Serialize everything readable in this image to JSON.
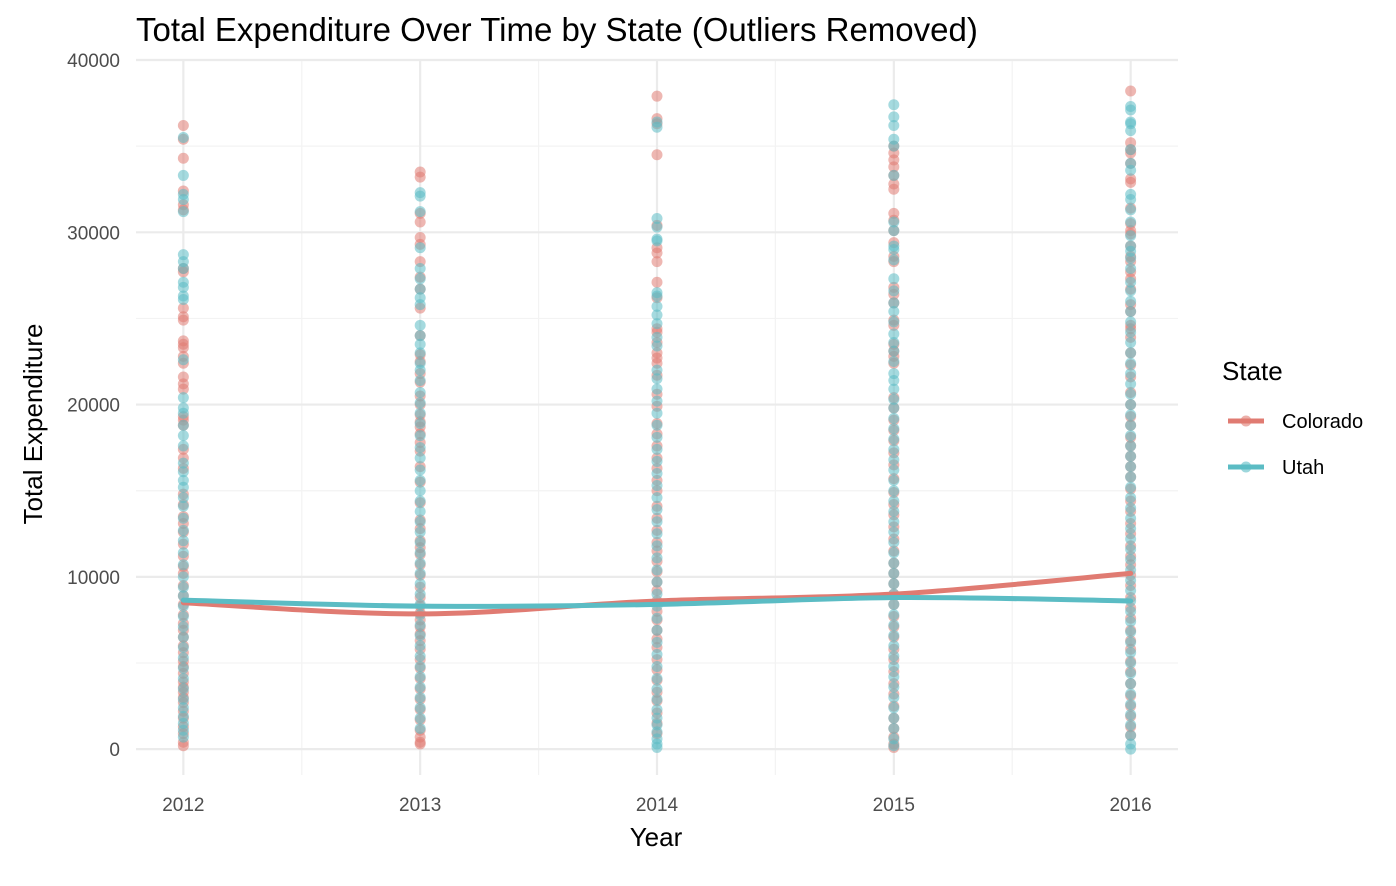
{
  "chart_data": {
    "type": "scatter",
    "title": "Total Expenditure Over Time by State (Outliers Removed)",
    "xlabel": "Year",
    "ylabel": "Total Expenditure",
    "x_ticks": [
      "2012",
      "2013",
      "2014",
      "2015",
      "2016"
    ],
    "y_ticks": [
      "0",
      "10000",
      "20000",
      "30000",
      "40000"
    ],
    "xlim": [
      2011.8,
      2016.2
    ],
    "ylim": [
      -1500,
      40000
    ],
    "legend": {
      "title": "State",
      "position": "right"
    },
    "series": [
      {
        "name": "Colorado",
        "color": "#e07b72",
        "points": [
          {
            "x": 2012,
            "y": [
              36200,
              35400,
              34300,
              32400,
              31600,
              31300,
              27900,
              27700,
              25600,
              25100,
              24900,
              23700,
              23500,
              23300,
              22800,
              22400,
              21600,
              21200,
              20900,
              19300,
              19100,
              18800,
              17400,
              16900,
              16300,
              14800,
              14200,
              13500,
              13100,
              12600,
              11900,
              11200,
              10600,
              10200,
              9500,
              8900,
              8400,
              7800,
              7300,
              6900,
              6500,
              6000,
              5600,
              5100,
              4800,
              4400,
              3900,
              3600,
              3300,
              3000,
              2700,
              2200,
              1800,
              1300,
              900,
              400,
              200
            ]
          },
          {
            "x": 2013,
            "y": [
              33500,
              33200,
              31100,
              30600,
              29700,
              29300,
              28300,
              27400,
              26700,
              25600,
              24000,
              22900,
              22500,
              21800,
              21300,
              20500,
              20000,
              19400,
              19000,
              18700,
              18300,
              17800,
              17300,
              16400,
              15500,
              14300,
              13300,
              12800,
              12100,
              11700,
              11300,
              10700,
              10100,
              9400,
              8800,
              8300,
              7900,
              7500,
              7100,
              6700,
              6300,
              5800,
              5200,
              4700,
              4100,
              3500,
              2900,
              2300,
              1700,
              1100,
              700,
              400,
              300
            ]
          },
          {
            "x": 2014,
            "y": [
              37900,
              36600,
              36300,
              34500,
              30400,
              29100,
              28800,
              28300,
              27100,
              26200,
              24400,
              24200,
              23600,
              23000,
              22700,
              22400,
              21700,
              20600,
              19900,
              18900,
              18300,
              17600,
              16900,
              16300,
              15600,
              15000,
              14100,
              13400,
              12700,
              12000,
              11500,
              10900,
              10300,
              9700,
              9200,
              8600,
              8000,
              7500,
              6900,
              6400,
              5900,
              5200,
              4600,
              4000,
              3300,
              2800,
              2100,
              1500,
              900
            ]
          },
          {
            "x": 2015,
            "y": [
              35000,
              34600,
              34200,
              33800,
              33300,
              32800,
              32500,
              31100,
              30700,
              30100,
              29400,
              28600,
              28300,
              26800,
              26400,
              25900,
              24900,
              24600,
              23500,
              23100,
              22800,
              22400,
              20400,
              19800,
              19100,
              18500,
              17900,
              17200,
              16500,
              15700,
              14900,
              14200,
              13600,
              12900,
              12200,
              11500,
              10800,
              10200,
              9600,
              9000,
              8400,
              7700,
              7100,
              6500,
              5800,
              5200,
              4500,
              3800,
              3200,
              2500,
              1800,
              1200,
              700,
              300,
              100
            ]
          },
          {
            "x": 2016,
            "y": [
              38200,
              35200,
              34800,
              34600,
              34000,
              33100,
              32900,
              31400,
              30500,
              30100,
              29900,
              29200,
              28600,
              28300,
              27700,
              27300,
              26700,
              25800,
              25400,
              24600,
              24400,
              23900,
              23000,
              22300,
              21600,
              20700,
              20000,
              19300,
              18800,
              18100,
              17600,
              17000,
              16400,
              15800,
              15100,
              14400,
              13800,
              13100,
              12500,
              11800,
              11200,
              10700,
              10100,
              9500,
              8800,
              8200,
              7600,
              6900,
              6300,
              5800,
              5100,
              4500,
              3800,
              3100,
              2500,
              1900,
              1300,
              800
            ]
          }
        ],
        "trend": [
          8500,
          7850,
          8600,
          9000,
          10200
        ]
      },
      {
        "name": "Utah",
        "color": "#5bbcc4",
        "points": [
          {
            "x": 2012,
            "y": [
              35500,
              33300,
              32200,
              31900,
              31200,
              28700,
              28300,
              27900,
              27100,
              26800,
              26300,
              26100,
              22600,
              20400,
              19800,
              19500,
              18800,
              18200,
              17600,
              16600,
              16100,
              15600,
              15200,
              14600,
              14100,
              13400,
              12700,
              12100,
              11400,
              10700,
              10000,
              9400,
              8900,
              8300,
              7700,
              7100,
              6500,
              5900,
              5300,
              4700,
              4100,
              3500,
              2900,
              2400,
              1900,
              1500,
              1100,
              700
            ]
          },
          {
            "x": 2013,
            "y": [
              32300,
              32100,
              31200,
              29100,
              27900,
              27300,
              26700,
              26200,
              25800,
              24600,
              24000,
              23500,
              23000,
              22400,
              22000,
              21400,
              20700,
              20100,
              19500,
              18900,
              18200,
              17500,
              16900,
              16200,
              15600,
              15000,
              14400,
              13800,
              13200,
              12600,
              12000,
              11400,
              10800,
              10200,
              9600,
              9000,
              8400,
              7800,
              7200,
              6600,
              6000,
              5400,
              4800,
              4200,
              3600,
              3000,
              2400,
              1800,
              1200
            ]
          },
          {
            "x": 2014,
            "y": [
              36400,
              36100,
              30800,
              30300,
              29600,
              29500,
              26500,
              26300,
              25700,
              25200,
              24700,
              23900,
              23400,
              22000,
              21500,
              20900,
              20200,
              19500,
              18800,
              18100,
              17400,
              16700,
              16000,
              15300,
              14600,
              13900,
              13200,
              12500,
              11800,
              11100,
              10400,
              9700,
              9000,
              8300,
              7600,
              6900,
              6200,
              5500,
              4800,
              4100,
              3500,
              2900,
              2300,
              1800,
              1400,
              1000,
              600,
              300,
              100
            ]
          },
          {
            "x": 2015,
            "y": [
              37400,
              36700,
              36200,
              35400,
              35000,
              33300,
              30600,
              30100,
              29200,
              29000,
              28400,
              27300,
              26600,
              25900,
              25400,
              24800,
              24100,
              23600,
              23100,
              22500,
              21800,
              21400,
              20900,
              20300,
              19800,
              19200,
              18600,
              18000,
              17400,
              16800,
              16200,
              15600,
              15000,
              14400,
              13800,
              13200,
              12600,
              12000,
              11400,
              10800,
              10200,
              9600,
              9000,
              8400,
              7800,
              7200,
              6600,
              6000,
              5400,
              4800,
              4200,
              3600,
              3000,
              2400,
              1800,
              1200,
              600,
              200
            ]
          },
          {
            "x": 2016,
            "y": [
              37300,
              37100,
              36300,
              36400,
              35900,
              34800,
              34000,
              33600,
              32200,
              31900,
              31300,
              30600,
              29800,
              29200,
              28900,
              28500,
              27900,
              27100,
              26600,
              26000,
              25400,
              24800,
              24200,
              23600,
              23000,
              22400,
              21800,
              21200,
              20600,
              20000,
              19400,
              18800,
              18200,
              17600,
              17000,
              16400,
              15800,
              15200,
              14600,
              14000,
              13400,
              12800,
              12200,
              11600,
              11000,
              10400,
              9800,
              9200,
              8600,
              8000,
              7400,
              6800,
              6200,
              5600,
              5000,
              4400,
              3800,
              3200,
              2600,
              2000,
              1400,
              800,
              300,
              0
            ]
          }
        ],
        "trend": [
          8650,
          8300,
          8400,
          8800,
          8600
        ]
      }
    ]
  }
}
